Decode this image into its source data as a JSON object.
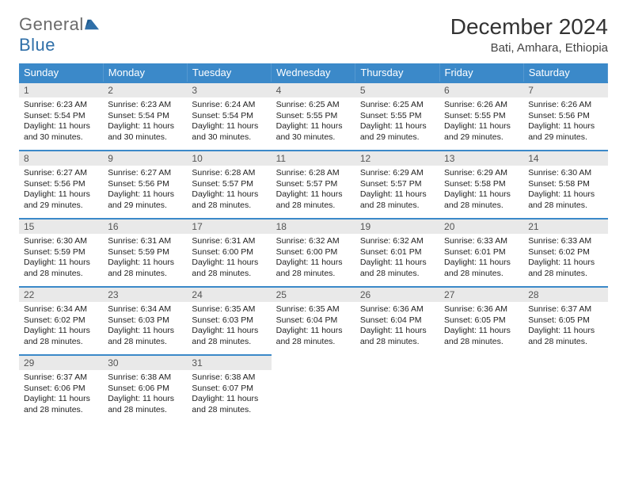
{
  "brand": {
    "text1": "General",
    "text2": "Blue",
    "shape_color": "#2f6fa8"
  },
  "title": "December 2024",
  "location": "Bati, Amhara, Ethiopia",
  "colors": {
    "header_bg": "#3b89c9",
    "header_text": "#ffffff",
    "daynum_bg": "#e9e9e9",
    "row_border": "#3b89c9",
    "body_text": "#222222"
  },
  "day_headers": [
    "Sunday",
    "Monday",
    "Tuesday",
    "Wednesday",
    "Thursday",
    "Friday",
    "Saturday"
  ],
  "weeks": [
    [
      {
        "n": "1",
        "sunrise": "6:23 AM",
        "sunset": "5:54 PM",
        "daylight": "11 hours and 30 minutes."
      },
      {
        "n": "2",
        "sunrise": "6:23 AM",
        "sunset": "5:54 PM",
        "daylight": "11 hours and 30 minutes."
      },
      {
        "n": "3",
        "sunrise": "6:24 AM",
        "sunset": "5:54 PM",
        "daylight": "11 hours and 30 minutes."
      },
      {
        "n": "4",
        "sunrise": "6:25 AM",
        "sunset": "5:55 PM",
        "daylight": "11 hours and 30 minutes."
      },
      {
        "n": "5",
        "sunrise": "6:25 AM",
        "sunset": "5:55 PM",
        "daylight": "11 hours and 29 minutes."
      },
      {
        "n": "6",
        "sunrise": "6:26 AM",
        "sunset": "5:55 PM",
        "daylight": "11 hours and 29 minutes."
      },
      {
        "n": "7",
        "sunrise": "6:26 AM",
        "sunset": "5:56 PM",
        "daylight": "11 hours and 29 minutes."
      }
    ],
    [
      {
        "n": "8",
        "sunrise": "6:27 AM",
        "sunset": "5:56 PM",
        "daylight": "11 hours and 29 minutes."
      },
      {
        "n": "9",
        "sunrise": "6:27 AM",
        "sunset": "5:56 PM",
        "daylight": "11 hours and 29 minutes."
      },
      {
        "n": "10",
        "sunrise": "6:28 AM",
        "sunset": "5:57 PM",
        "daylight": "11 hours and 28 minutes."
      },
      {
        "n": "11",
        "sunrise": "6:28 AM",
        "sunset": "5:57 PM",
        "daylight": "11 hours and 28 minutes."
      },
      {
        "n": "12",
        "sunrise": "6:29 AM",
        "sunset": "5:57 PM",
        "daylight": "11 hours and 28 minutes."
      },
      {
        "n": "13",
        "sunrise": "6:29 AM",
        "sunset": "5:58 PM",
        "daylight": "11 hours and 28 minutes."
      },
      {
        "n": "14",
        "sunrise": "6:30 AM",
        "sunset": "5:58 PM",
        "daylight": "11 hours and 28 minutes."
      }
    ],
    [
      {
        "n": "15",
        "sunrise": "6:30 AM",
        "sunset": "5:59 PM",
        "daylight": "11 hours and 28 minutes."
      },
      {
        "n": "16",
        "sunrise": "6:31 AM",
        "sunset": "5:59 PM",
        "daylight": "11 hours and 28 minutes."
      },
      {
        "n": "17",
        "sunrise": "6:31 AM",
        "sunset": "6:00 PM",
        "daylight": "11 hours and 28 minutes."
      },
      {
        "n": "18",
        "sunrise": "6:32 AM",
        "sunset": "6:00 PM",
        "daylight": "11 hours and 28 minutes."
      },
      {
        "n": "19",
        "sunrise": "6:32 AM",
        "sunset": "6:01 PM",
        "daylight": "11 hours and 28 minutes."
      },
      {
        "n": "20",
        "sunrise": "6:33 AM",
        "sunset": "6:01 PM",
        "daylight": "11 hours and 28 minutes."
      },
      {
        "n": "21",
        "sunrise": "6:33 AM",
        "sunset": "6:02 PM",
        "daylight": "11 hours and 28 minutes."
      }
    ],
    [
      {
        "n": "22",
        "sunrise": "6:34 AM",
        "sunset": "6:02 PM",
        "daylight": "11 hours and 28 minutes."
      },
      {
        "n": "23",
        "sunrise": "6:34 AM",
        "sunset": "6:03 PM",
        "daylight": "11 hours and 28 minutes."
      },
      {
        "n": "24",
        "sunrise": "6:35 AM",
        "sunset": "6:03 PM",
        "daylight": "11 hours and 28 minutes."
      },
      {
        "n": "25",
        "sunrise": "6:35 AM",
        "sunset": "6:04 PM",
        "daylight": "11 hours and 28 minutes."
      },
      {
        "n": "26",
        "sunrise": "6:36 AM",
        "sunset": "6:04 PM",
        "daylight": "11 hours and 28 minutes."
      },
      {
        "n": "27",
        "sunrise": "6:36 AM",
        "sunset": "6:05 PM",
        "daylight": "11 hours and 28 minutes."
      },
      {
        "n": "28",
        "sunrise": "6:37 AM",
        "sunset": "6:05 PM",
        "daylight": "11 hours and 28 minutes."
      }
    ],
    [
      {
        "n": "29",
        "sunrise": "6:37 AM",
        "sunset": "6:06 PM",
        "daylight": "11 hours and 28 minutes."
      },
      {
        "n": "30",
        "sunrise": "6:38 AM",
        "sunset": "6:06 PM",
        "daylight": "11 hours and 28 minutes."
      },
      {
        "n": "31",
        "sunrise": "6:38 AM",
        "sunset": "6:07 PM",
        "daylight": "11 hours and 28 minutes."
      },
      null,
      null,
      null,
      null
    ]
  ],
  "labels": {
    "sunrise": "Sunrise:",
    "sunset": "Sunset:",
    "daylight": "Daylight:"
  }
}
